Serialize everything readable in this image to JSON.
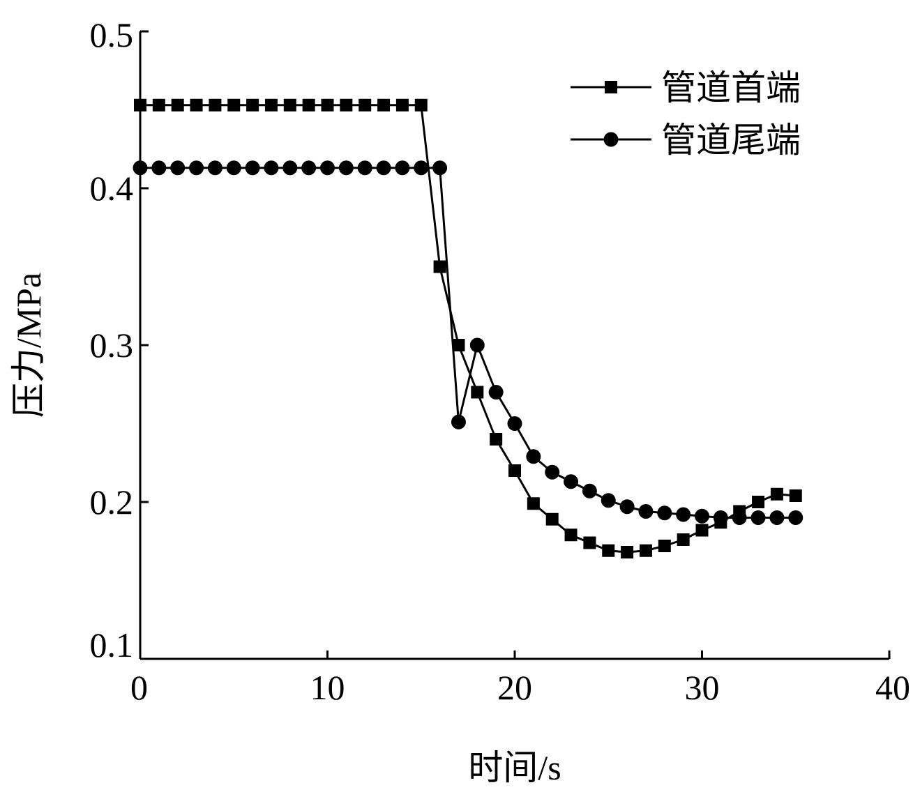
{
  "chart_data": {
    "type": "line",
    "xlabel": "时间/s",
    "ylabel": "压力/MPa",
    "xlim": [
      0,
      40
    ],
    "ylim": [
      0.1,
      0.5
    ],
    "xticks": [
      0,
      10,
      20,
      30,
      40
    ],
    "xtick_labels": [
      "0",
      "10",
      "20",
      "30",
      "40"
    ],
    "yticks": [
      0.1,
      0.2,
      0.3,
      0.4,
      0.5
    ],
    "ytick_labels": [
      "0.1",
      "0.2",
      "0.3",
      "0.4",
      "0.5"
    ],
    "grid": false,
    "legend_position": "top-right",
    "colors": {
      "line": "#000000",
      "background": "#ffffff"
    },
    "series": [
      {
        "name": "管道首端",
        "marker": "square",
        "x": [
          0,
          1,
          2,
          3,
          4,
          5,
          6,
          7,
          8,
          9,
          10,
          11,
          12,
          13,
          14,
          15,
          16,
          17,
          18,
          19,
          20,
          21,
          22,
          23,
          24,
          25,
          26,
          27,
          28,
          29,
          30,
          31,
          32,
          33,
          34,
          35
        ],
        "values": [
          0.453,
          0.453,
          0.453,
          0.453,
          0.453,
          0.453,
          0.453,
          0.453,
          0.453,
          0.453,
          0.453,
          0.453,
          0.453,
          0.453,
          0.453,
          0.453,
          0.35,
          0.3,
          0.27,
          0.24,
          0.22,
          0.199,
          0.189,
          0.179,
          0.174,
          0.169,
          0.168,
          0.169,
          0.172,
          0.176,
          0.182,
          0.187,
          0.194,
          0.2,
          0.205,
          0.204
        ]
      },
      {
        "name": "管道尾端",
        "marker": "circle",
        "x": [
          0,
          1,
          2,
          3,
          4,
          5,
          6,
          7,
          8,
          9,
          10,
          11,
          12,
          13,
          14,
          15,
          16,
          17,
          18,
          19,
          20,
          21,
          22,
          23,
          24,
          25,
          26,
          27,
          28,
          29,
          30,
          31,
          32,
          33,
          34,
          35
        ],
        "values": [
          0.413,
          0.413,
          0.413,
          0.413,
          0.413,
          0.413,
          0.413,
          0.413,
          0.413,
          0.413,
          0.413,
          0.413,
          0.413,
          0.413,
          0.413,
          0.413,
          0.413,
          0.251,
          0.3,
          0.27,
          0.25,
          0.229,
          0.219,
          0.213,
          0.207,
          0.201,
          0.197,
          0.194,
          0.193,
          0.192,
          0.191,
          0.19,
          0.19,
          0.19,
          0.19,
          0.19
        ]
      }
    ]
  }
}
